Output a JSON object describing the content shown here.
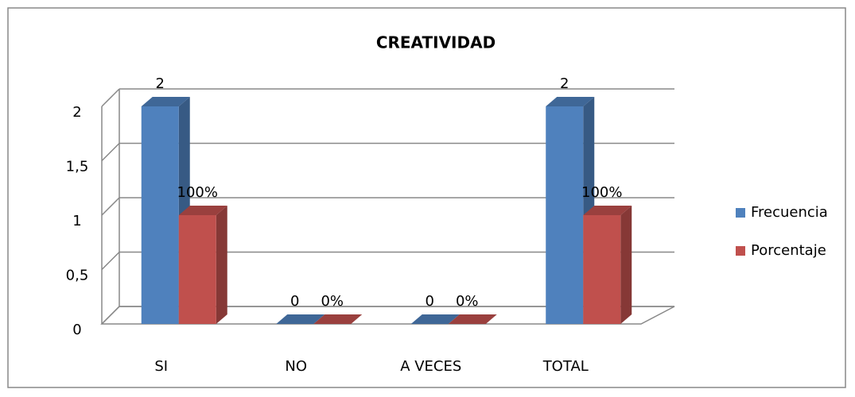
{
  "chart_data": {
    "type": "bar3d",
    "title": "CREATIVIDAD",
    "categories": [
      "SI",
      "NO",
      "A VECES",
      "TOTAL"
    ],
    "series": [
      {
        "name": "Frecuencia",
        "color": "#4f81bd",
        "values": [
          2,
          0,
          0,
          2
        ]
      },
      {
        "name": "Porcentaje",
        "color": "#c0504d",
        "values": [
          1,
          0,
          0,
          1
        ],
        "value_labels": [
          "100%",
          "0%",
          "0%",
          "100%"
        ]
      }
    ],
    "ylim": [
      0,
      2
    ],
    "yticks": [
      0,
      {
        "value": 0.5,
        "label": "0,5"
      },
      1,
      {
        "value": 1.5,
        "label": "1,5"
      },
      2
    ],
    "grid": true,
    "legend": "right"
  }
}
